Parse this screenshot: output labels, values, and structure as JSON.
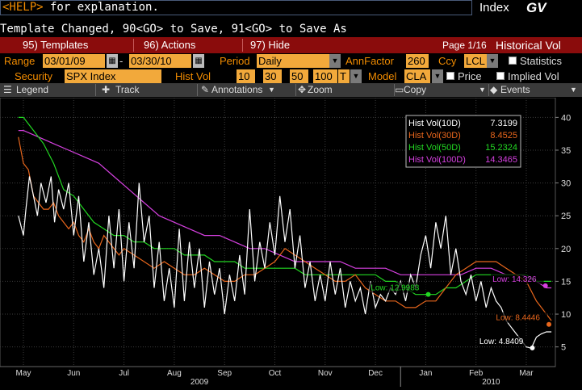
{
  "command": {
    "help_key": "<HELP>",
    "text": " for explanation.",
    "function_label": "Index",
    "ticker": "GV"
  },
  "message": "Template Changed, 90<GO> to Save, 91<GO> to Save As",
  "toolbar": {
    "templates": "95) Templates",
    "actions": "96) Actions",
    "hide": "97) Hide",
    "page": "Page 1/16",
    "title": "Historical Vol"
  },
  "params": {
    "range_label": "Range",
    "start_date": "03/01/09",
    "end_date": "03/30/10",
    "period_label": "Period",
    "period": "Daily",
    "annfactor_label": "AnnFactor",
    "annfactor": "260",
    "ccy_label": "Ccy",
    "ccy": "LCL",
    "statistics_label": "Statistics",
    "security_label": "Security",
    "security": "SPX Index",
    "histvol_label": "Hist Vol",
    "hv1": "10",
    "hv2": "30",
    "hv3": "50",
    "hv4": "100",
    "hv_type": "T",
    "model_label": "Model",
    "model": "CLA",
    "price_label": "Price",
    "implied_label": "Implied Vol"
  },
  "chart_toolbar": {
    "legend": "Legend",
    "track": "Track",
    "annotations": "Annotations",
    "zoom": "Zoom",
    "copy": "Copy",
    "events": "Events"
  },
  "colors": {
    "hv10": "#ffffff",
    "hv30": "#e8661c",
    "hv50": "#22d822",
    "hv100": "#d640e0",
    "accent": "#f28c00",
    "toolbar_red": "#8a0c0c"
  },
  "chart_data": {
    "type": "line",
    "title": "",
    "ylim": [
      2,
      43
    ],
    "yticks": [
      5,
      10,
      15,
      20,
      25,
      30,
      35,
      40
    ],
    "x_month_labels": [
      "May",
      "Jun",
      "Jul",
      "Aug",
      "Sep",
      "Oct",
      "Nov",
      "Dec",
      "Jan",
      "Feb",
      "Mar"
    ],
    "x_year_labels": [
      "2009",
      "2010"
    ],
    "legend": [
      {
        "name": "Hist Vol(10D)",
        "last": "7.3199",
        "color": "#ffffff"
      },
      {
        "name": "Hist Vol(30D)",
        "last": "8.4525",
        "color": "#e8661c"
      },
      {
        "name": "Hist Vol(50D)",
        "last": "15.2324",
        "color": "#22d822"
      },
      {
        "name": "Hist Vol(100D)",
        "last": "14.3465",
        "color": "#d640e0"
      }
    ],
    "annotations": [
      {
        "text": "Low: 12.9983",
        "series": 2,
        "x": 8.05,
        "y": 13.0
      },
      {
        "text": "Low: 14.326",
        "series": 3,
        "x": 10.38,
        "y": 14.33
      },
      {
        "text": "Low: 8.4446",
        "series": 1,
        "x": 10.45,
        "y": 8.44
      },
      {
        "text": "Low: 4.8409",
        "series": 0,
        "x": 10.12,
        "y": 4.84
      }
    ],
    "series": [
      {
        "name": "Hist Vol(10D)",
        "x": [
          -0.1,
          0.0,
          0.05,
          0.12,
          0.2,
          0.28,
          0.35,
          0.45,
          0.55,
          0.62,
          0.7,
          0.8,
          0.9,
          1.0,
          1.1,
          1.2,
          1.3,
          1.4,
          1.5,
          1.6,
          1.7,
          1.8,
          1.9,
          2.0,
          2.1,
          2.2,
          2.3,
          2.4,
          2.5,
          2.6,
          2.7,
          2.8,
          2.9,
          3.0,
          3.1,
          3.2,
          3.3,
          3.4,
          3.5,
          3.6,
          3.7,
          3.8,
          3.9,
          4.0,
          4.1,
          4.2,
          4.3,
          4.4,
          4.5,
          4.6,
          4.7,
          4.8,
          4.9,
          5.0,
          5.1,
          5.2,
          5.3,
          5.4,
          5.5,
          5.6,
          5.7,
          5.8,
          5.9,
          6.0,
          6.1,
          6.2,
          6.3,
          6.4,
          6.5,
          6.6,
          6.7,
          6.8,
          6.9,
          7.0,
          7.1,
          7.2,
          7.3,
          7.4,
          7.5,
          7.6,
          7.7,
          7.8,
          7.9,
          8.0,
          8.1,
          8.2,
          8.3,
          8.4,
          8.5,
          8.6,
          8.7,
          8.8,
          8.9,
          9.0,
          9.1,
          9.2,
          9.3,
          9.4,
          9.5,
          9.6,
          9.7,
          9.8,
          9.9,
          10.0,
          10.1,
          10.2,
          10.3,
          10.4,
          10.5
        ],
        "values": [
          25,
          22,
          26,
          31,
          28,
          25,
          30,
          27,
          31,
          24,
          29,
          26,
          30,
          22,
          28,
          18,
          24,
          16,
          20,
          14,
          25,
          17,
          26,
          15,
          24,
          17,
          30,
          21,
          25,
          14,
          21,
          12,
          17,
          11,
          23,
          12,
          21,
          14,
          20,
          11,
          18,
          13,
          17,
          10,
          16,
          12,
          19,
          13,
          26,
          15,
          21,
          17,
          24,
          19,
          28,
          21,
          26,
          17,
          22,
          14,
          18,
          12,
          16,
          12,
          18,
          13,
          17,
          11,
          15,
          12,
          14,
          10,
          15,
          11,
          13,
          12,
          14,
          13,
          15,
          12,
          16,
          14,
          19,
          22,
          17,
          24,
          20,
          25,
          16,
          20,
          15,
          13,
          16,
          12,
          15,
          11,
          14,
          12,
          11,
          9,
          8,
          7,
          6,
          5,
          4.8,
          6.5,
          7,
          7.3,
          7.3
        ]
      },
      {
        "name": "Hist Vol(30D)",
        "x": [
          -0.1,
          0.0,
          0.1,
          0.2,
          0.3,
          0.4,
          0.5,
          0.6,
          0.7,
          0.8,
          0.9,
          1.0,
          1.1,
          1.2,
          1.3,
          1.4,
          1.5,
          1.6,
          1.7,
          1.8,
          1.9,
          2.0,
          2.2,
          2.4,
          2.6,
          2.8,
          3.0,
          3.2,
          3.4,
          3.6,
          3.8,
          4.0,
          4.2,
          4.4,
          4.6,
          4.8,
          5.0,
          5.2,
          5.4,
          5.6,
          5.8,
          6.0,
          6.2,
          6.4,
          6.6,
          6.8,
          7.0,
          7.2,
          7.4,
          7.6,
          7.8,
          8.0,
          8.2,
          8.4,
          8.6,
          8.8,
          9.0,
          9.2,
          9.4,
          9.6,
          9.8,
          10.0,
          10.2,
          10.4,
          10.5
        ],
        "values": [
          37,
          33,
          32,
          28,
          27,
          26,
          26,
          27,
          25,
          24,
          23,
          24,
          22,
          21,
          23,
          21,
          20,
          22,
          21,
          20,
          19,
          20,
          19,
          18,
          17,
          18,
          17,
          16,
          16,
          17,
          16,
          15,
          15,
          16,
          16,
          17,
          18,
          20,
          19,
          18,
          17,
          16,
          15,
          15,
          16,
          14,
          13,
          12,
          12,
          11,
          11,
          12,
          12,
          14,
          16,
          17,
          18,
          18,
          18,
          17,
          16,
          15,
          12,
          10,
          9
        ]
      },
      {
        "name": "Hist Vol(50D)",
        "x": [
          -0.1,
          0.0,
          0.2,
          0.4,
          0.6,
          0.8,
          1.0,
          1.2,
          1.4,
          1.6,
          1.8,
          2.0,
          2.2,
          2.4,
          2.6,
          2.8,
          3.0,
          3.2,
          3.4,
          3.6,
          3.8,
          4.0,
          4.2,
          4.4,
          4.6,
          4.8,
          5.0,
          5.2,
          5.4,
          5.6,
          5.8,
          6.0,
          6.2,
          6.4,
          6.6,
          6.8,
          7.0,
          7.2,
          7.4,
          7.6,
          7.8,
          8.0,
          8.2,
          8.4,
          8.6,
          8.8,
          9.0,
          9.2,
          9.4,
          9.6,
          9.8,
          10.0,
          10.2,
          10.4,
          10.5
        ],
        "values": [
          40,
          40,
          38,
          36,
          33,
          29,
          28,
          26,
          24,
          23,
          22,
          22,
          21,
          21,
          20,
          20,
          20,
          19,
          19,
          19,
          18,
          18,
          18,
          17,
          17,
          17,
          17,
          17,
          17,
          16,
          16,
          16,
          16,
          16,
          16,
          16,
          16,
          15,
          15,
          14,
          13,
          13,
          13,
          14,
          14,
          15,
          16,
          16,
          16,
          16,
          16,
          16,
          15,
          15,
          15
        ]
      },
      {
        "name": "Hist Vol(100D)",
        "x": [
          -0.1,
          0.0,
          0.3,
          0.6,
          0.9,
          1.2,
          1.5,
          1.8,
          2.1,
          2.4,
          2.7,
          3.0,
          3.3,
          3.6,
          3.9,
          4.2,
          4.5,
          4.8,
          5.1,
          5.4,
          5.7,
          6.0,
          6.3,
          6.6,
          6.9,
          7.2,
          7.5,
          7.8,
          8.1,
          8.4,
          8.7,
          9.0,
          9.3,
          9.6,
          9.9,
          10.2,
          10.4,
          10.5
        ],
        "values": [
          38,
          38,
          37,
          36,
          35,
          34,
          33,
          31,
          29,
          27,
          25,
          24,
          23,
          22,
          22,
          21,
          20,
          20,
          19,
          18,
          18,
          18,
          18,
          17,
          17,
          17,
          16,
          16,
          16,
          16,
          16,
          17,
          17,
          16,
          16,
          15,
          14,
          14
        ]
      }
    ]
  }
}
